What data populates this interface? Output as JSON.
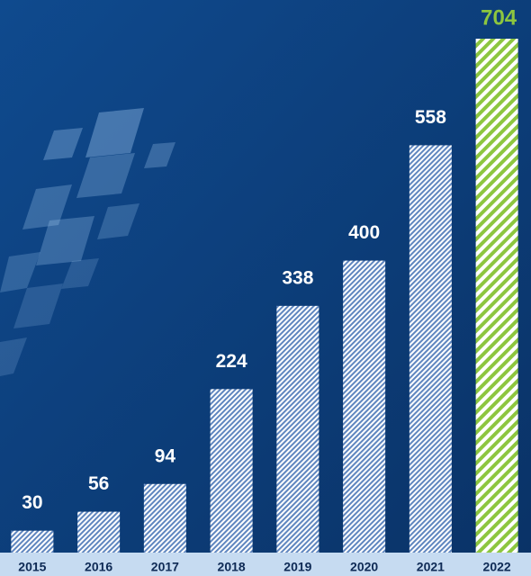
{
  "chart_data": {
    "type": "bar",
    "categories": [
      "2015",
      "2016",
      "2017",
      "2018",
      "2019",
      "2020",
      "2021",
      "2022"
    ],
    "values": [
      30,
      56,
      94,
      224,
      338,
      400,
      558,
      704
    ],
    "colors": [
      "#ffffff",
      "#ffffff",
      "#ffffff",
      "#ffffff",
      "#ffffff",
      "#ffffff",
      "#ffffff",
      "#8dc63f"
    ]
  }
}
